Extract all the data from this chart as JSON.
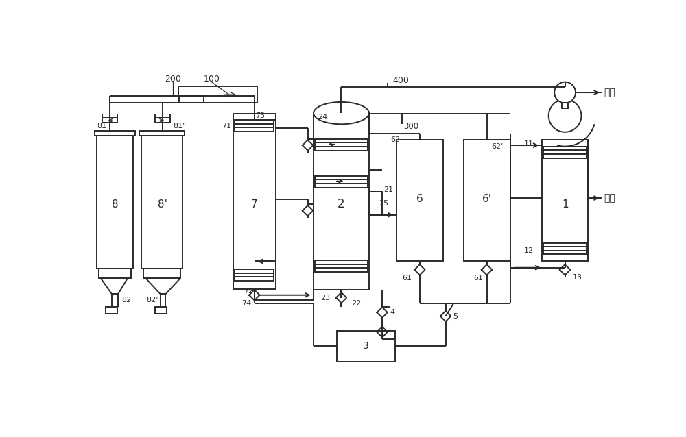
{
  "bg_color": "#ffffff",
  "lc": "#2a2a2a",
  "lw": 1.4,
  "fig_w": 10.0,
  "fig_h": 6.38,
  "text_qiyan": "气氨",
  "text_yeyan": "氢氨"
}
